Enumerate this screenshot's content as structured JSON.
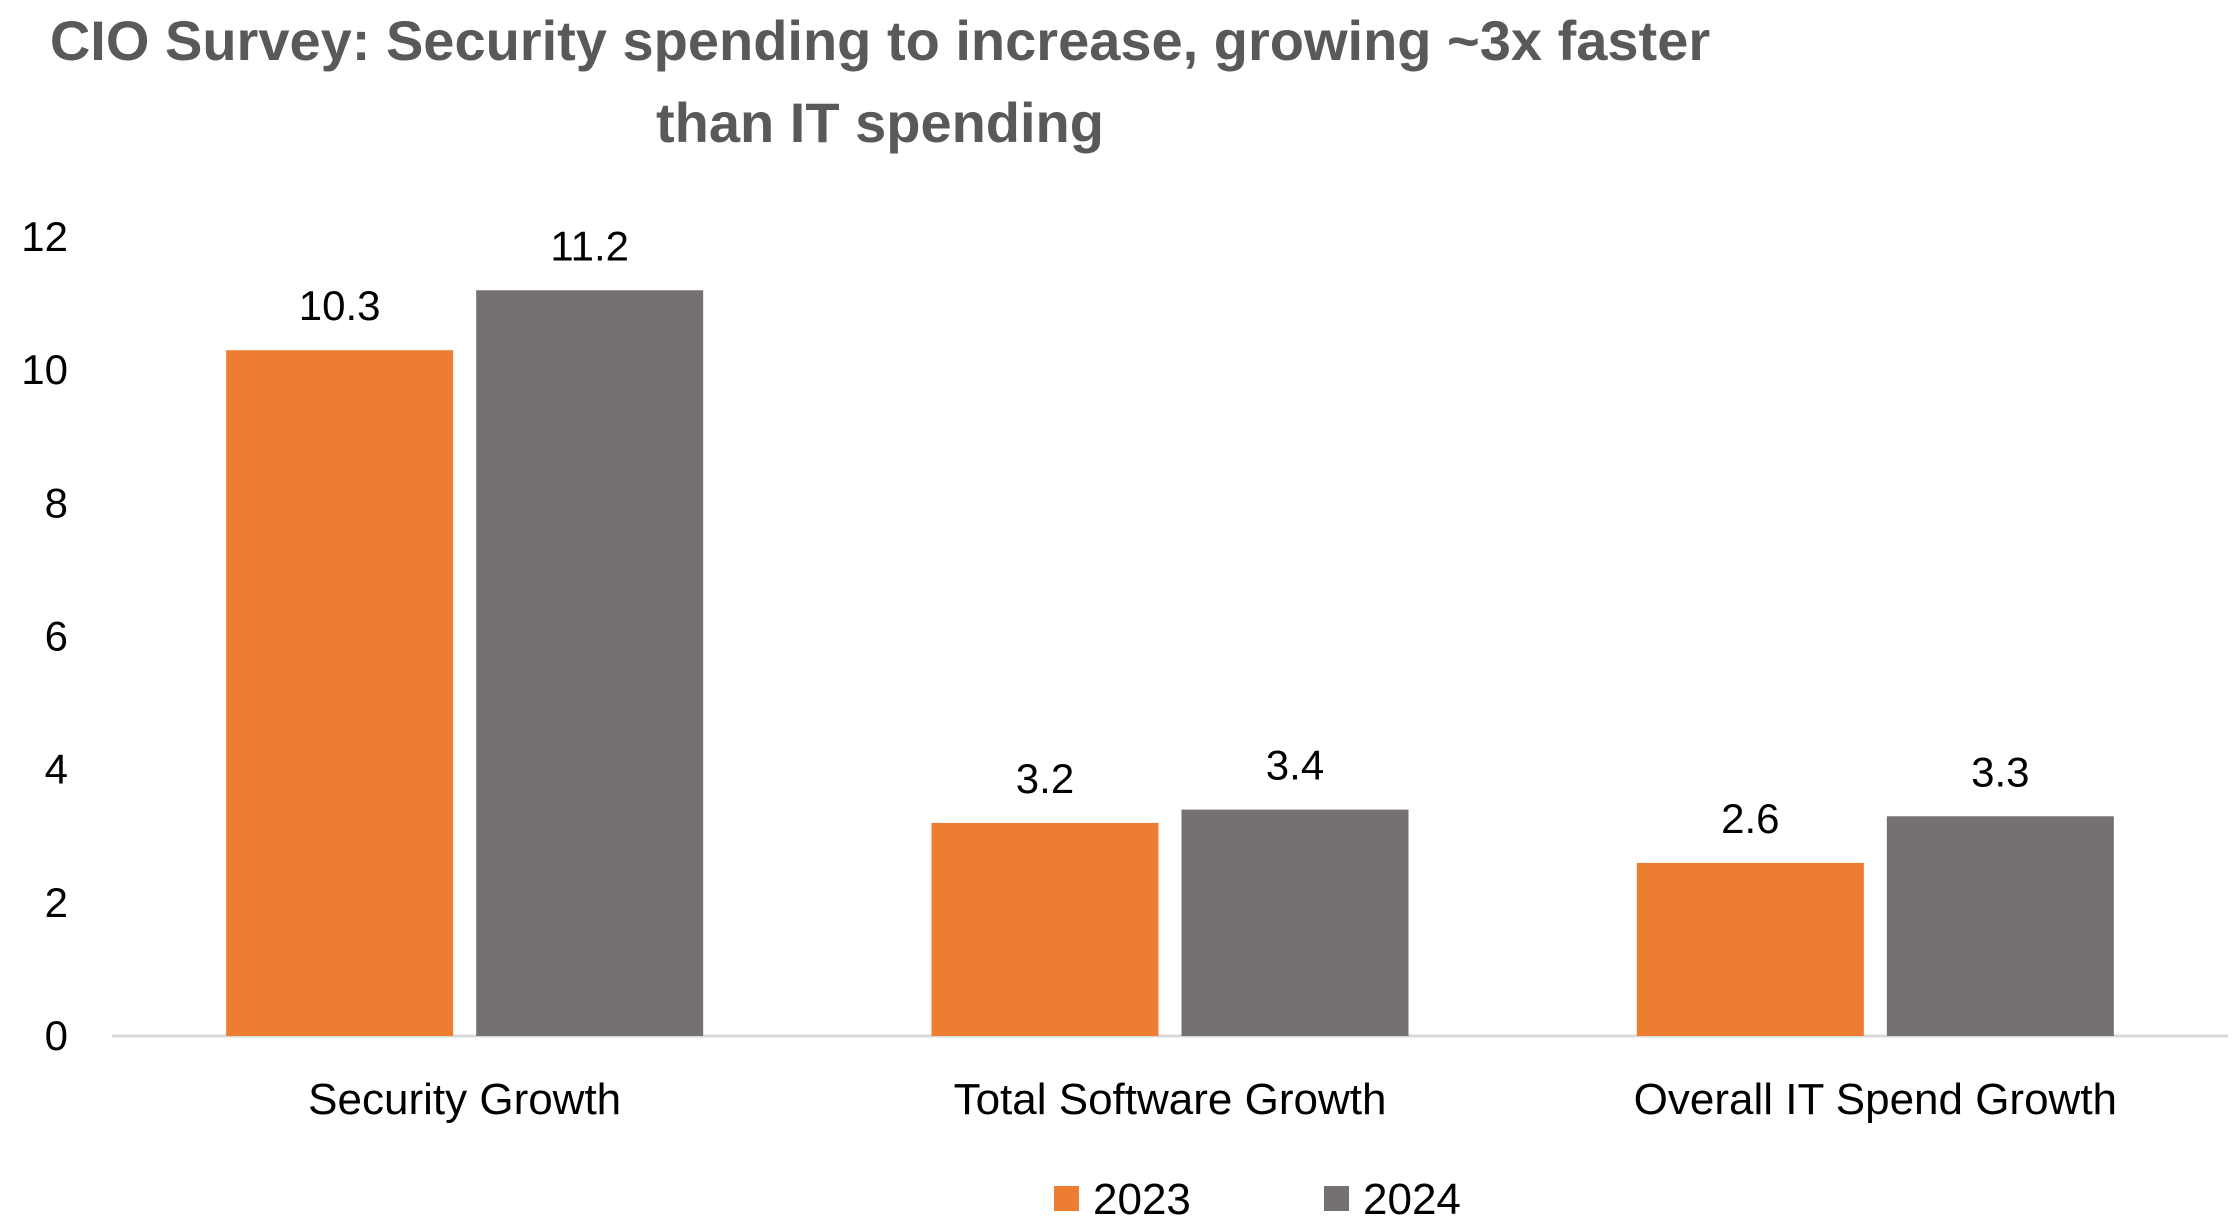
{
  "title_line1": "CIO Survey: Security spending to increase, growing ~3x faster",
  "title_line2": "than IT spending",
  "chart_data": {
    "type": "bar",
    "categories": [
      "Security Growth",
      "Total Software Growth",
      "Overall IT Spend Growth"
    ],
    "series": [
      {
        "name": "2023",
        "values": [
          10.3,
          3.2,
          2.6
        ],
        "labels": [
          "10.3",
          "3.2",
          "2.6"
        ],
        "color": "#ED7D31"
      },
      {
        "name": "2024",
        "values": [
          11.2,
          3.4,
          3.3
        ],
        "labels": [
          "11.2",
          "3.4",
          "3.3"
        ],
        "color": "#767171"
      }
    ],
    "ylim": [
      0,
      12
    ],
    "yticks": [
      0,
      2,
      4,
      6,
      8,
      10,
      12
    ],
    "grid": false,
    "legend": "bottom-center",
    "text_color": "#000000",
    "axis_color": "#d9d9d9"
  }
}
